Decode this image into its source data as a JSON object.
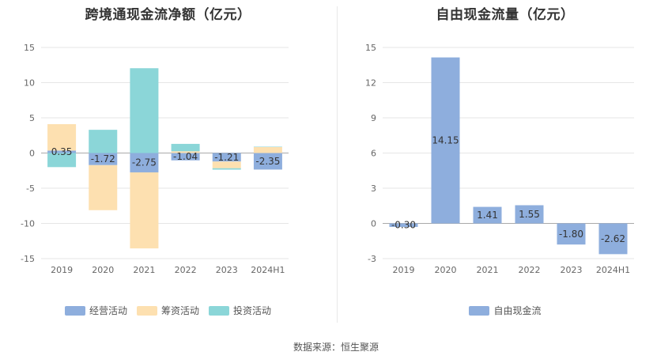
{
  "source_text": "数据来源：恒生聚源",
  "chart_data": [
    {
      "type": "bar",
      "stacked": true,
      "title": "跨境通现金流净额（亿元）",
      "categories": [
        "2019",
        "2020",
        "2021",
        "2022",
        "2023",
        "2024H1"
      ],
      "ylim": [
        -15,
        15
      ],
      "yticks": [
        -15,
        -10,
        -5,
        0,
        5,
        10,
        15
      ],
      "grid": true,
      "legend_position": "bottom",
      "series": [
        {
          "name": "经营活动",
          "color": "#8eaedd",
          "values": [
            0.35,
            -1.72,
            -2.75,
            -1.04,
            -1.21,
            -2.35
          ],
          "labeled": true
        },
        {
          "name": "筹资活动",
          "color": "#fde0b0",
          "values": [
            3.75,
            -6.4,
            -10.8,
            0.25,
            -0.95,
            0.85
          ],
          "labeled": false
        },
        {
          "name": "投资活动",
          "color": "#8bd6d8",
          "values": [
            -2.0,
            3.3,
            12.05,
            1.05,
            -0.2,
            0.05
          ],
          "labeled": false
        }
      ]
    },
    {
      "type": "bar",
      "title": "自由现金流量（亿元）",
      "categories": [
        "2019",
        "2020",
        "2021",
        "2022",
        "2023",
        "2024H1"
      ],
      "ylim": [
        -3,
        15
      ],
      "yticks": [
        -3,
        0,
        3,
        6,
        9,
        12,
        15
      ],
      "grid": true,
      "legend_position": "bottom",
      "series": [
        {
          "name": "自由现金流",
          "color": "#8eaedd",
          "values": [
            -0.3,
            14.15,
            1.41,
            1.55,
            -1.8,
            -2.62
          ],
          "labeled": true
        }
      ]
    }
  ]
}
